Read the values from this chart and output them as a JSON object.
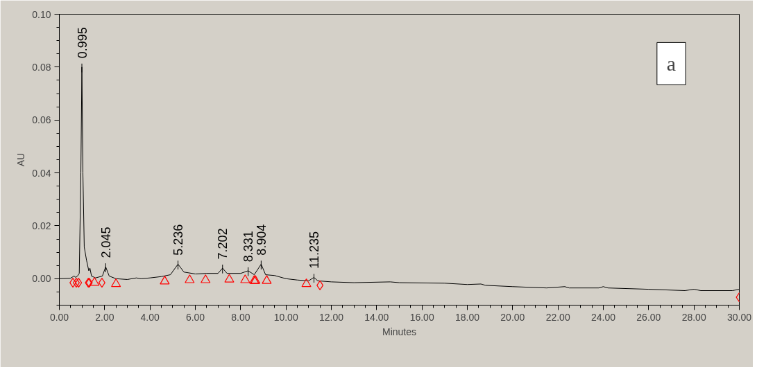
{
  "chart_data": {
    "type": "line",
    "xlabel": "Minutes",
    "ylabel": "AU",
    "xlim": [
      0,
      30
    ],
    "ylim": [
      -0.01,
      0.1
    ],
    "xticks": [
      {
        "value": 0,
        "label": "0.00"
      },
      {
        "value": 2,
        "label": "2.00"
      },
      {
        "value": 4,
        "label": "4.00"
      },
      {
        "value": 6,
        "label": "6.00"
      },
      {
        "value": 8,
        "label": "8.00"
      },
      {
        "value": 10,
        "label": "10.00"
      },
      {
        "value": 12,
        "label": "12.00"
      },
      {
        "value": 14,
        "label": "14.00"
      },
      {
        "value": 16,
        "label": "16.00"
      },
      {
        "value": 18,
        "label": "18.00"
      },
      {
        "value": 20,
        "label": "20.00"
      },
      {
        "value": 22,
        "label": "22.00"
      },
      {
        "value": 24,
        "label": "24.00"
      },
      {
        "value": 26,
        "label": "26.00"
      },
      {
        "value": 28,
        "label": "28.00"
      },
      {
        "value": 30,
        "label": "30.00"
      }
    ],
    "yticks": [
      {
        "value": 0,
        "label": "0.00"
      },
      {
        "value": 0.02,
        "label": "0.02"
      },
      {
        "value": 0.04,
        "label": "0.04"
      },
      {
        "value": 0.06,
        "label": "0.06"
      },
      {
        "value": 0.08,
        "label": "0.08"
      },
      {
        "value": 0.1,
        "label": "0.10"
      }
    ],
    "grid": false,
    "series": [
      {
        "color": "#000000",
        "line_style": "solid",
        "x": [
          0,
          0.5,
          0.65,
          0.72,
          0.8,
          0.88,
          0.95,
          0.995,
          1.04,
          1.1,
          1.2,
          1.3,
          1.35,
          1.42,
          1.6,
          1.9,
          2.045,
          2.2,
          2.5,
          3,
          3.4,
          3.6,
          4,
          4.5,
          4.9,
          5.236,
          5.5,
          6,
          6.5,
          7,
          7.202,
          7.4,
          8,
          8.331,
          8.6,
          8.904,
          9.1,
          9.5,
          10,
          10.5,
          11,
          11.235,
          11.4,
          12,
          13,
          14.6,
          15,
          17,
          18,
          18.6,
          18.8,
          20,
          21.5,
          22.3,
          22.5,
          23.8,
          24,
          24.2,
          26,
          27.6,
          28,
          28.3,
          29.7,
          30
        ],
        "values": [
          0,
          0.0002,
          0.001,
          0.0005,
          0.001,
          0.002,
          0.04,
          0.08,
          0.04,
          0.012,
          0.007,
          0.003,
          0.004,
          0.001,
          0.0003,
          0.001,
          0.0045,
          0.001,
          0,
          -0.0003,
          0.0003,
          0,
          0.0003,
          0.0008,
          0.0015,
          0.0055,
          0.0025,
          0.0018,
          0.002,
          0.002,
          0.004,
          0.002,
          0.002,
          0.003,
          0.0015,
          0.0055,
          0.0015,
          0.0012,
          0,
          -0.0005,
          -0.0008,
          0.0005,
          -0.0008,
          -0.0012,
          -0.0015,
          -0.0012,
          -0.0015,
          -0.0017,
          -0.0022,
          -0.002,
          -0.0025,
          -0.003,
          -0.0035,
          -0.003,
          -0.0035,
          -0.0035,
          -0.003,
          -0.0035,
          -0.004,
          -0.0045,
          -0.004,
          -0.0045,
          -0.0045,
          -0.004
        ]
      },
      {
        "type": "scatter",
        "color": "#ff0000",
        "marker": "diamond",
        "x": [
          0.6,
          0.75,
          0.85,
          1.28,
          1.32,
          1.88,
          11.5,
          30
        ],
        "values": [
          -0.0015,
          -0.0015,
          -0.0015,
          -0.0015,
          -0.0015,
          -0.0015,
          -0.0025,
          -0.007
        ]
      },
      {
        "type": "scatter",
        "color": "#ff0000",
        "marker": "triangle",
        "x": [
          1.55,
          2.5,
          4.65,
          5.75,
          6.45,
          7.5,
          8.2,
          8.6,
          8.65,
          9.15,
          10.9
        ],
        "values": [
          -0.0015,
          -0.002,
          -0.001,
          -0.0005,
          -0.0005,
          -0.0003,
          -0.0005,
          -0.0008,
          -0.0008,
          -0.0008,
          -0.002
        ]
      }
    ],
    "annotations": [
      {
        "text": "0.995",
        "x": 0.995,
        "y": 0.08
      },
      {
        "text": "2.045",
        "x": 2.045,
        "y": 0.0045
      },
      {
        "text": "5.236",
        "x": 5.236,
        "y": 0.0055
      },
      {
        "text": "7.202",
        "x": 7.202,
        "y": 0.004
      },
      {
        "text": "8.331",
        "x": 8.331,
        "y": 0.003
      },
      {
        "text": "8.904",
        "x": 8.904,
        "y": 0.0055
      },
      {
        "text": "11.235",
        "x": 11.235,
        "y": 0.0005
      },
      "a"
    ]
  }
}
